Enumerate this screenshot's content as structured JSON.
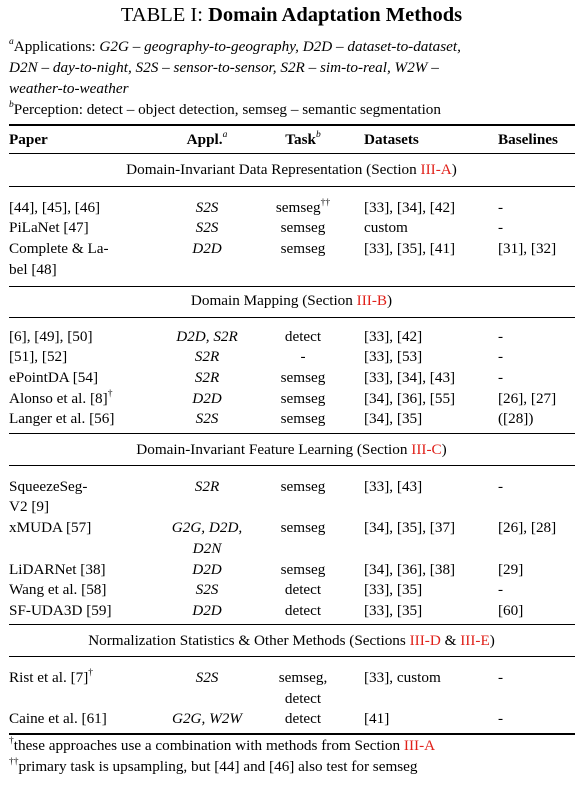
{
  "table": {
    "title_prefix": "TABLE I:",
    "title_main": "Domain Adaptation Methods",
    "notes": {
      "a_mark": "a",
      "applications_line1": "Applications:",
      "applications_items": "G2G – geography-to-geography, D2D – dataset-to-dataset,",
      "applications_line2": "D2N – day-to-night, S2S – sensor-to-sensor, S2R – sim-to-real, W2W –",
      "applications_line3": "weather-to-weather",
      "b_mark": "b",
      "perception_line": "Perception: detect – object detection, semseg – semantic segmentation"
    },
    "columns": {
      "paper": "Paper",
      "appl": "Appl.",
      "appl_mark": "a",
      "task": "Task",
      "task_mark": "b",
      "datasets": "Datasets",
      "baselines": "Baselines"
    },
    "sections": [
      {
        "text": "Domain-Invariant Data Representation (Section ",
        "ref": "III-A",
        "close": ")"
      },
      {
        "text": "Domain Mapping (Section ",
        "ref": "III-B",
        "close": ")"
      },
      {
        "text": "Domain-Invariant Feature Learning (Section ",
        "ref": "III-C",
        "close": ")"
      },
      {
        "text": "Normalization Statistics & Other Methods (Sections ",
        "ref": "III-D",
        "amp": " & ",
        "ref2": "III-E",
        "close": ")"
      }
    ],
    "rows": [
      {
        "paper": "[44], [45], [46]",
        "appl": "S2S",
        "task": "semseg",
        "task_mark": "††",
        "datasets": "[33], [34], [42]",
        "baselines": "-"
      },
      {
        "paper": "PiLaNet [47]",
        "appl": "S2S",
        "task": "semseg",
        "datasets": "custom",
        "baselines": "-"
      },
      {
        "paper": "Complete & La-",
        "paper2": "bel [48]",
        "appl": "D2D",
        "task": "semseg",
        "datasets": "[33], [35], [41]",
        "baselines": "[31], [32]"
      },
      {
        "paper": "[6], [49], [50]",
        "appl": "D2D, S2R",
        "task": "detect",
        "datasets": "[33], [42]",
        "baselines": "-"
      },
      {
        "paper": "[51], [52]",
        "appl": "S2R",
        "task": "-",
        "datasets": "[33], [53]",
        "baselines": "-"
      },
      {
        "paper": "ePointDA [54]",
        "appl": "S2R",
        "task": "semseg",
        "datasets": "[33], [34], [43]",
        "baselines": "-"
      },
      {
        "paper": "Alonso et al. [8]",
        "paper_mark": "†",
        "appl": "D2D",
        "task": "semseg",
        "datasets": "[34], [36], [55]",
        "baselines": "[26], [27]"
      },
      {
        "paper": "Langer et al. [56]",
        "appl": "S2S",
        "task": "semseg",
        "datasets": "[34], [35]",
        "baselines": "([28])"
      },
      {
        "paper": "SqueezeSeg-",
        "paper2": "V2 [9]",
        "appl": "S2R",
        "task": "semseg",
        "datasets": "[33], [43]",
        "baselines": "-"
      },
      {
        "paper": "xMUDA [57]",
        "appl": "G2G, D2D,",
        "appl2": "D2N",
        "task": "semseg",
        "datasets": "[34], [35], [37]",
        "baselines": "[26], [28]"
      },
      {
        "paper": "LiDARNet [38]",
        "appl": "D2D",
        "task": "semseg",
        "datasets": "[34], [36], [38]",
        "baselines": "[29]"
      },
      {
        "paper": "Wang et al. [58]",
        "appl": "S2S",
        "task": "detect",
        "datasets": "[33], [35]",
        "baselines": "-"
      },
      {
        "paper": "SF-UDA3D [59]",
        "appl": "D2D",
        "task": "detect",
        "datasets": "[33], [35]",
        "baselines": "[60]"
      },
      {
        "paper": "Rist et al. [7]",
        "paper_mark": "†",
        "appl": "S2S",
        "task": "semseg,",
        "task2": "detect",
        "datasets": "[33], custom",
        "baselines": "-"
      },
      {
        "paper": "Caine et al. [61]",
        "appl": "G2G, W2W",
        "task": "detect",
        "datasets": "[41]",
        "baselines": "-"
      }
    ],
    "footnotes": {
      "f1_mark": "†",
      "f1_text": "these approaches use a combination with methods from Section ",
      "f1_ref": "III-A",
      "f2_mark": "††",
      "f2_text": "primary task is upsampling, but [44] and [46] also test for semseg"
    }
  }
}
